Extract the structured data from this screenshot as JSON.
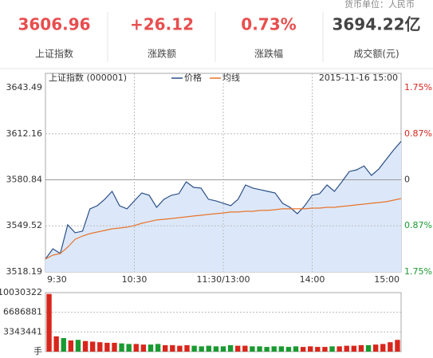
{
  "header": {
    "unit_note": "货币单位：人民币",
    "stats": [
      {
        "value": "3606.96",
        "label": "上证指数",
        "color": "#e84e4e"
      },
      {
        "value": "+26.12",
        "label": "涨跌额",
        "color": "#e84e4e"
      },
      {
        "value": "0.73%",
        "label": "涨跌幅",
        "color": "#e84e4e"
      },
      {
        "value": "3694.22亿",
        "label": "成交额(元)",
        "color": "#444444"
      }
    ]
  },
  "chart_data": [
    {
      "type": "line",
      "title": "上证指数 (000001)",
      "subtitle": "2015-11-16 15:00",
      "categories": [
        "9:30",
        null,
        null,
        null,
        null,
        null,
        null,
        null,
        null,
        null,
        null,
        null,
        "10:30",
        null,
        null,
        null,
        null,
        null,
        null,
        null,
        null,
        null,
        null,
        null,
        "11:30/13:00",
        null,
        null,
        null,
        null,
        null,
        null,
        null,
        null,
        null,
        null,
        null,
        "14:00",
        null,
        null,
        null,
        null,
        null,
        null,
        null,
        null,
        null,
        null,
        null,
        "15:00"
      ],
      "series": [
        {
          "name": "价格",
          "color": "#2b4f86",
          "fill": "#dce8fa",
          "values": [
            3526.9,
            3533.9,
            3530.7,
            3550.2,
            3544.8,
            3545.9,
            3561.1,
            3563.2,
            3567.6,
            3573.0,
            3563.2,
            3561.1,
            3566.5,
            3571.9,
            3570.3,
            3562.1,
            3567.6,
            3570.3,
            3571.4,
            3579.5,
            3575.7,
            3575.2,
            3567.6,
            3566.5,
            3564.9,
            3563.2,
            3567.6,
            3577.3,
            3575.2,
            3574.1,
            3573.0,
            3571.9,
            3564.9,
            3562.1,
            3557.8,
            3563.2,
            3570.3,
            3571.4,
            3577.3,
            3573.0,
            3579.5,
            3586.5,
            3587.6,
            3590.3,
            3583.8,
            3588.2,
            3594.7,
            3601.2,
            3606.96
          ]
        },
        {
          "name": "均线",
          "color": "#e8742b",
          "values": [
            3526.9,
            3529.6,
            3530.7,
            3535.0,
            3540.4,
            3542.6,
            3544.2,
            3545.3,
            3546.4,
            3547.5,
            3548.0,
            3548.6,
            3549.7,
            3551.3,
            3552.4,
            3553.5,
            3554.0,
            3554.5,
            3555.1,
            3555.6,
            3556.2,
            3556.7,
            3557.3,
            3557.8,
            3558.3,
            3558.9,
            3558.9,
            3559.4,
            3559.4,
            3560.0,
            3560.0,
            3560.5,
            3561.1,
            3561.1,
            3561.1,
            3561.1,
            3561.6,
            3561.6,
            3562.1,
            3562.1,
            3562.7,
            3563.2,
            3563.8,
            3564.3,
            3564.9,
            3565.4,
            3565.9,
            3567.0,
            3568.1
          ]
        }
      ],
      "ylim": [
        3518.19,
        3643.49
      ],
      "yticks": [
        3518.19,
        3549.52,
        3580.84,
        3612.16,
        3643.49
      ],
      "y2lim": [
        -1.75,
        1.75
      ],
      "y2ticks": [
        {
          "value": -1.75,
          "label": "1.75%"
        },
        {
          "value": -0.87,
          "label": "0.87%"
        },
        0,
        {
          "value": 0.87,
          "label": "0.87%"
        },
        {
          "value": 1.75,
          "label": "1.75%"
        }
      ],
      "up_color": "#d9261c",
      "down_color": "#1a9a31",
      "grid": true
    },
    {
      "type": "bar",
      "unit": "手",
      "values": [
        9800000,
        2600000,
        2300000,
        1900000,
        2000000,
        1800000,
        1700000,
        1600000,
        1500000,
        1500000,
        1400000,
        1300000,
        1300000,
        1200000,
        1200000,
        1300000,
        1100000,
        1100000,
        1000000,
        1100000,
        1000000,
        900000,
        1000000,
        900000,
        900000,
        1100000,
        1000000,
        1000000,
        900000,
        900000,
        800000,
        900000,
        900000,
        800000,
        900000,
        800000,
        900000,
        800000,
        800000,
        900000,
        900000,
        1000000,
        1000000,
        1100000,
        1100000,
        1200000,
        1300000,
        1600000,
        2000000
      ],
      "ylim": [
        0,
        10030322
      ],
      "yticks": [
        3343441,
        6686881,
        10030322
      ],
      "up_color": "#d9261c",
      "down_color": "#1a9a31",
      "grid": true
    }
  ]
}
